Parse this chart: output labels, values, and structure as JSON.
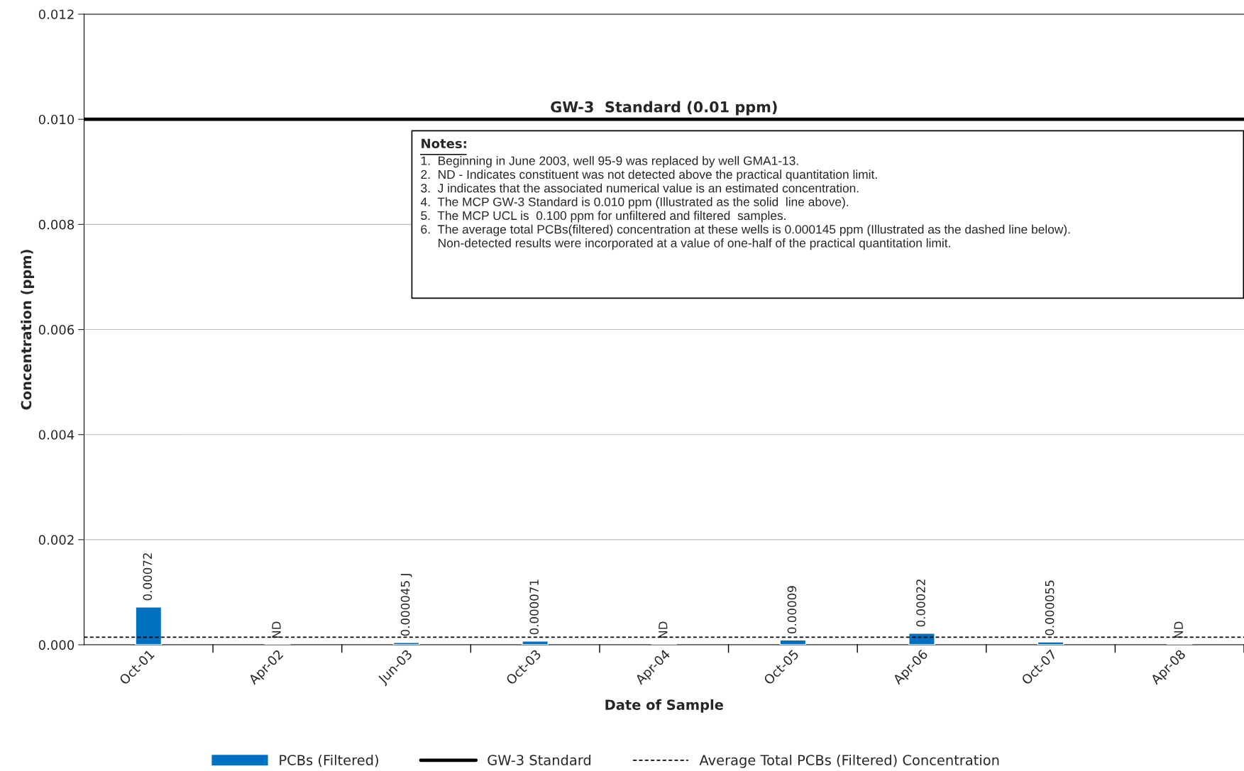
{
  "chart_data": {
    "type": "bar",
    "xlabel": "Date of Sample",
    "ylabel": "Concentration (ppm)",
    "categories": [
      "Oct-01",
      "Apr-02",
      "Jun-03",
      "Oct-03",
      "Apr-04",
      "Oct-05",
      "Apr-06",
      "Oct-07",
      "Apr-08"
    ],
    "series": [
      {
        "name": "PCBs (Filtered)",
        "color": "#0070c0",
        "values": [
          0.00072,
          null,
          4.5e-05,
          7.1e-05,
          null,
          9e-05,
          0.00022,
          5.5e-05,
          null
        ],
        "value_labels": [
          "0.00072",
          "ND",
          "0.000045 J",
          "0.000071",
          "ND",
          "0.00009",
          "0.00022",
          "0.000055",
          "ND"
        ]
      }
    ],
    "ylim": [
      0,
      0.012
    ],
    "yticks": [
      {
        "value": 0,
        "label": "0.000"
      },
      {
        "value": 0.002,
        "label": "0.002"
      },
      {
        "value": 0.004,
        "label": "0.004"
      },
      {
        "value": 0.006,
        "label": "0.006"
      },
      {
        "value": 0.008,
        "label": "0.008"
      },
      {
        "value": 0.01,
        "label": "0.010"
      },
      {
        "value": 0.012,
        "label": "0.012"
      }
    ],
    "grid": "y",
    "legend": "bottom",
    "ref_lines": [
      {
        "axis": "y",
        "value": 0.01,
        "label": "GW-3 Standard",
        "color": "#000000",
        "line_style": "solid"
      },
      {
        "axis": "y",
        "value": 0.000145,
        "label": "Average Total PCBs (Filtered) Concentration",
        "color": "#000000",
        "line_style": "dashed"
      }
    ],
    "annotations": [
      {
        "text": "GW-3  Standard (0.01 ppm)",
        "x": "Apr-04",
        "y": 0.01
      },
      "Notes:",
      "1.  Beginning in June 2003, well 95-9 was replaced by well GMA1-13.\n2.  ND - Indicates constituent was not detected above the practical quantitation limit.\n3.  J indicates that the associated numerical value is an estimated concentration.\n4.  The MCP GW-3 Standard is 0.010 ppm (Illustrated as the solid  line above).\n5.  The MCP UCL is  0.100 ppm for unfiltered and filtered  samples.\n6.  The average total PCBs(filtered) concentration at these wells is 0.000145 ppm (Illustrated as the dashed line below).\n     Non-detected results were incorporated at a value of one-half of the practical quantitation limit."
    ]
  }
}
